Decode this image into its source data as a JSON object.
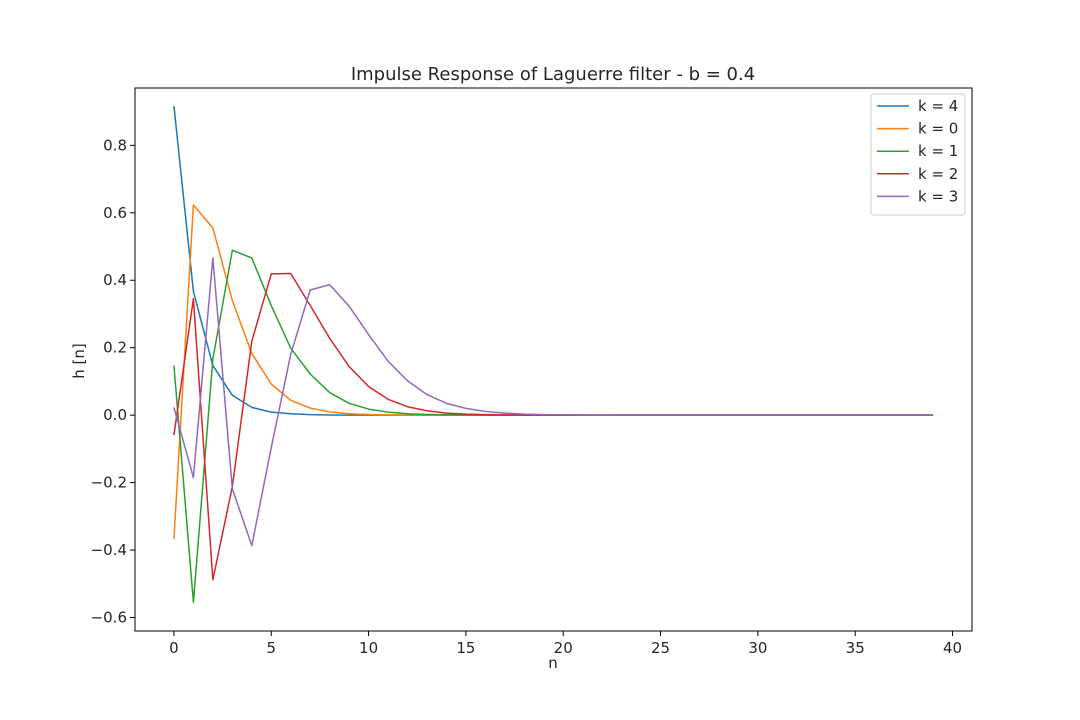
{
  "chart_data": {
    "type": "line",
    "title": "Impulse Response of Laguerre filter - b = 0.4",
    "xlabel": "n",
    "ylabel": "h [n]",
    "xlim": [
      -2,
      41
    ],
    "ylim": [
      -0.64,
      0.97
    ],
    "xticks": [
      0,
      5,
      10,
      15,
      20,
      25,
      30,
      35,
      40
    ],
    "xtick_labels": [
      "0",
      "5",
      "10",
      "15",
      "20",
      "25",
      "30",
      "35",
      "40"
    ],
    "yticks": [
      -0.6,
      -0.4,
      -0.2,
      0.0,
      0.2,
      0.4,
      0.6,
      0.8
    ],
    "ytick_labels": [
      "−0.6",
      "−0.4",
      "−0.2",
      "0.0",
      "0.2",
      "0.4",
      "0.6",
      "0.8"
    ],
    "grid": false,
    "legend_position": "top-right",
    "x": [
      0,
      1,
      2,
      3,
      4,
      5,
      6,
      7,
      8,
      9,
      10,
      11,
      12,
      13,
      14,
      15,
      16,
      17,
      18,
      19,
      20,
      21,
      22,
      23,
      24,
      25,
      26,
      27,
      28,
      29,
      30,
      31,
      32,
      33,
      34,
      35,
      36,
      37,
      38,
      39
    ],
    "series": [
      {
        "name": "k = 4",
        "color": "#1f77b4",
        "values": [
          0.917,
          0.367,
          0.147,
          0.059,
          0.023,
          0.009,
          0.004,
          0.0015,
          0.0006,
          0.0002,
          0.0001,
          0,
          0,
          0,
          0,
          0,
          0,
          0,
          0,
          0,
          0,
          0,
          0,
          0,
          0,
          0,
          0,
          0,
          0,
          0,
          0,
          0,
          0,
          0,
          0,
          0,
          0,
          0,
          0,
          0
        ]
      },
      {
        "name": "k = 0",
        "color": "#ff7f0e",
        "values": [
          -0.367,
          0.623,
          0.555,
          0.34,
          0.183,
          0.092,
          0.044,
          0.021,
          0.0095,
          0.0043,
          0.0019,
          0.0008,
          0.0004,
          0.0001,
          0,
          0,
          0,
          0,
          0,
          0,
          0,
          0,
          0,
          0,
          0,
          0,
          0,
          0,
          0,
          0,
          0,
          0,
          0,
          0,
          0,
          0,
          0,
          0,
          0,
          0
        ]
      },
      {
        "name": "k = 1",
        "color": "#2ca02c",
        "values": [
          0.147,
          -0.555,
          0.166,
          0.489,
          0.466,
          0.325,
          0.199,
          0.122,
          0.067,
          0.035,
          0.018,
          0.009,
          0.004,
          0.002,
          0.001,
          0.0004,
          0.0002,
          0.0001,
          0,
          0,
          0,
          0,
          0,
          0,
          0,
          0,
          0,
          0,
          0,
          0,
          0,
          0,
          0,
          0,
          0,
          0,
          0,
          0,
          0,
          0
        ]
      },
      {
        "name": "k = 2",
        "color": "#d62728",
        "values": [
          -0.059,
          0.345,
          -0.488,
          -0.212,
          0.219,
          0.419,
          0.42,
          0.325,
          0.228,
          0.144,
          0.085,
          0.047,
          0.025,
          0.013,
          0.006,
          0.003,
          0.0015,
          0.0007,
          0.0003,
          0.0001,
          0,
          0,
          0,
          0,
          0,
          0,
          0,
          0,
          0,
          0,
          0,
          0,
          0,
          0,
          0,
          0,
          0,
          0,
          0,
          0
        ]
      },
      {
        "name": "k = 3",
        "color": "#9467bd",
        "values": [
          0.023,
          -0.185,
          0.466,
          -0.218,
          -0.387,
          -0.096,
          0.18,
          0.371,
          0.387,
          0.323,
          0.239,
          0.16,
          0.102,
          0.061,
          0.035,
          0.02,
          0.011,
          0.006,
          0.003,
          0.0015,
          0.0007,
          0.0003,
          0.0001,
          0,
          0,
          0,
          0,
          0,
          0,
          0,
          0,
          0,
          0,
          0,
          0,
          0,
          0,
          0,
          0,
          0
        ]
      }
    ]
  }
}
